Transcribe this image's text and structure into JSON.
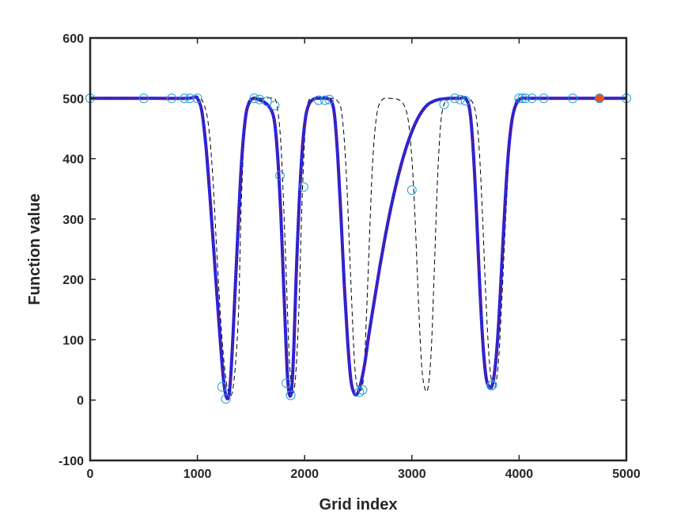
{
  "chart_data": {
    "type": "line",
    "xlabel": "Grid index",
    "ylabel": "Function value",
    "xlim": [
      0,
      5000
    ],
    "ylim": [
      -100,
      600
    ],
    "xticks": [
      0,
      1000,
      2000,
      3000,
      4000,
      5000
    ],
    "yticks": [
      -100,
      0,
      100,
      200,
      300,
      400,
      500,
      600
    ],
    "grid": false,
    "legend": "none",
    "colors": {
      "fit_line": "#1f1fe0",
      "fit_overlay": "#cc1f1f",
      "reference_dashed": "#000000",
      "markers": "#1e9fd6",
      "highlight_marker": "#e8521f",
      "axes": "#262626"
    },
    "series": [
      {
        "style": "dashed",
        "color": "#000000",
        "x": [
          0,
          300,
          600,
          900,
          1000,
          1050,
          1100,
          1140,
          1180,
          1230,
          1280,
          1330,
          1380,
          1410,
          1450,
          1500,
          1600,
          1700,
          1740,
          1780,
          1820,
          1860,
          1900,
          1940,
          1980,
          2020,
          2080,
          2200,
          2300,
          2350,
          2390,
          2430,
          2470,
          2510,
          2550,
          2590,
          2630,
          2670,
          2720,
          2800,
          2900,
          2960,
          3000,
          3030,
          3060,
          3090,
          3120,
          3150,
          3180,
          3210,
          3240,
          3270,
          3300,
          3340,
          3400,
          3500,
          3560,
          3600,
          3630,
          3660,
          3690,
          3720,
          3750,
          3780,
          3810,
          3840,
          3880,
          3920,
          3960,
          4000,
          4100,
          4500,
          5000
        ],
        "y": [
          500,
          500,
          500,
          500,
          500,
          495,
          460,
          380,
          250,
          100,
          20,
          18,
          130,
          330,
          470,
          500,
          500,
          500,
          490,
          420,
          250,
          60,
          15,
          120,
          350,
          480,
          500,
          500,
          497,
          470,
          370,
          200,
          50,
          18,
          40,
          200,
          380,
          470,
          497,
          500,
          495,
          470,
          400,
          300,
          170,
          60,
          20,
          20,
          80,
          220,
          370,
          460,
          490,
          498,
          500,
          500,
          495,
          470,
          410,
          300,
          170,
          70,
          25,
          25,
          70,
          170,
          320,
          440,
          490,
          500,
          500,
          500,
          500
        ]
      },
      {
        "style": "solid",
        "color": "#1f1fe0",
        "x": [
          0,
          300,
          600,
          900,
          980,
          1000,
          1040,
          1080,
          1120,
          1160,
          1200,
          1240,
          1270,
          1300,
          1330,
          1370,
          1410,
          1450,
          1490,
          1530,
          1570,
          1610,
          1650,
          1690,
          1720,
          1750,
          1780,
          1800,
          1820,
          1840,
          1860,
          1880,
          1900,
          1920,
          1950,
          1980,
          2010,
          2040,
          2070,
          2100,
          2150,
          2200,
          2250,
          2280,
          2310,
          2340,
          2370,
          2400,
          2430,
          2460,
          2490,
          2520,
          2560,
          2600,
          2650,
          2700,
          2750,
          2800,
          2850,
          2900,
          2950,
          3000,
          3050,
          3100,
          3150,
          3200,
          3250,
          3300,
          3350,
          3400,
          3450,
          3500,
          3540,
          3570,
          3600,
          3630,
          3660,
          3690,
          3720,
          3750,
          3780,
          3810,
          3840,
          3870,
          3900,
          3930,
          3960,
          3990,
          4020,
          4100,
          4500,
          5000
        ],
        "y": [
          500,
          500,
          500,
          500,
          502,
          500,
          480,
          420,
          330,
          230,
          130,
          40,
          5,
          15,
          100,
          250,
          390,
          470,
          495,
          500,
          498,
          495,
          490,
          480,
          460,
          400,
          300,
          210,
          120,
          40,
          8,
          20,
          90,
          200,
          330,
          420,
          470,
          490,
          497,
          500,
          500,
          500,
          495,
          470,
          400,
          300,
          190,
          100,
          35,
          12,
          10,
          25,
          60,
          110,
          165,
          220,
          270,
          315,
          355,
          390,
          420,
          445,
          465,
          480,
          490,
          495,
          498,
          499,
          500,
          500,
          500,
          500,
          480,
          420,
          320,
          200,
          100,
          40,
          22,
          25,
          60,
          130,
          230,
          330,
          410,
          460,
          485,
          495,
          500,
          500,
          500,
          500
        ]
      }
    ],
    "markers": {
      "color": "#1e9fd6",
      "x": [
        0,
        500,
        760,
        880,
        930,
        1000,
        1230,
        1265,
        1530,
        1580,
        1650,
        1720,
        1770,
        1830,
        1870,
        1990,
        2130,
        2190,
        2230,
        2510,
        2540,
        3000,
        3300,
        3400,
        3450,
        3500,
        3740,
        3750,
        4000,
        4030,
        4060,
        4120,
        4230,
        4500,
        5000
      ],
      "y": [
        500,
        500,
        500,
        500,
        500,
        500,
        22,
        2,
        500,
        498,
        495,
        488,
        372,
        28,
        8,
        353,
        497,
        497,
        498,
        13,
        17,
        348,
        490,
        500,
        498,
        496,
        24,
        25,
        500,
        500,
        500,
        500,
        500,
        500,
        500
      ]
    },
    "highlight_marker": {
      "x": 4750,
      "y": 500,
      "color": "#e8521f"
    }
  }
}
